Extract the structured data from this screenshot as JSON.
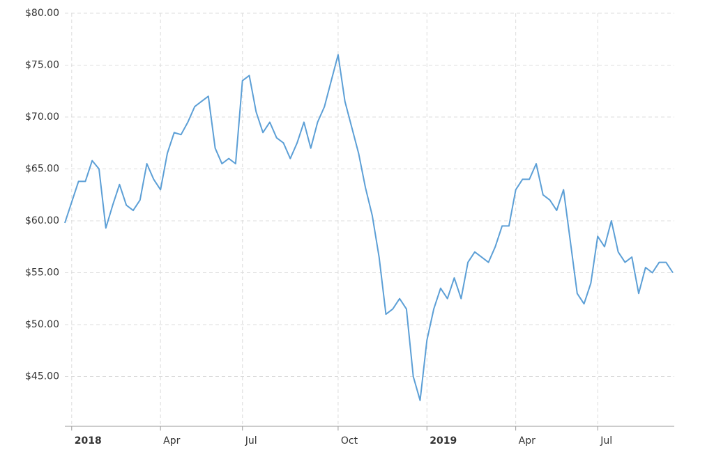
{
  "chart_data": {
    "type": "line",
    "categories": [
      null,
      "2018",
      null,
      null,
      null,
      null,
      null,
      null,
      null,
      null,
      null,
      null,
      null,
      null,
      "Apr",
      null,
      null,
      null,
      null,
      null,
      null,
      null,
      null,
      null,
      null,
      null,
      "Jul",
      null,
      null,
      null,
      null,
      null,
      null,
      null,
      null,
      null,
      null,
      null,
      null,
      null,
      "Oct",
      null,
      null,
      null,
      null,
      null,
      null,
      null,
      null,
      null,
      null,
      null,
      null,
      "2019",
      null,
      null,
      null,
      null,
      null,
      null,
      null,
      null,
      null,
      null,
      null,
      null,
      "Apr",
      null,
      null,
      null,
      null,
      null,
      null,
      null,
      null,
      null,
      null,
      null,
      "Jul",
      null,
      null,
      null,
      null,
      null,
      null,
      null,
      null,
      null,
      null,
      null
    ],
    "series": [
      {
        "color": "#5c9fd6",
        "values": [
          59.8,
          61.8,
          63.8,
          63.8,
          65.8,
          65.0,
          59.3,
          61.5,
          63.5,
          61.5,
          61.0,
          62.0,
          65.5,
          64.0,
          63.0,
          66.5,
          68.5,
          68.3,
          69.5,
          71.0,
          71.5,
          72.0,
          67.0,
          65.5,
          66.0,
          65.5,
          73.5,
          74.0,
          70.5,
          68.5,
          69.5,
          68.0,
          67.5,
          66.0,
          67.5,
          69.5,
          67.0,
          69.5,
          71.0,
          73.5,
          76.0,
          71.5,
          69.0,
          66.5,
          63.2,
          60.5,
          56.5,
          51.0,
          51.5,
          52.5,
          51.5,
          45.0,
          42.7,
          48.5,
          51.5,
          53.5,
          52.5,
          54.5,
          52.5,
          56.0,
          57.0,
          56.5,
          56.0,
          57.5,
          59.5,
          59.5,
          63.0,
          64.0,
          64.0,
          65.5,
          62.5,
          62.0,
          61.0,
          63.0,
          58.0,
          53.0,
          52.0,
          54.0,
          58.5,
          57.5,
          60.0,
          57.0,
          56.0,
          56.5,
          53.0,
          55.5,
          55.0,
          56.0,
          56.0,
          55.0
        ]
      }
    ],
    "ylim": [
      40.2,
      80
    ],
    "yticks": [
      {
        "value": 45,
        "label": "$45.00"
      },
      {
        "value": 50,
        "label": "$50.00"
      },
      {
        "value": 55,
        "label": "$55.00"
      },
      {
        "value": 60,
        "label": "$60.00"
      },
      {
        "value": 65,
        "label": "$65.00"
      },
      {
        "value": 70,
        "label": "$70.00"
      },
      {
        "value": 75,
        "label": "$75.00"
      },
      {
        "value": 80,
        "label": "$80.00"
      }
    ],
    "grid": true
  }
}
